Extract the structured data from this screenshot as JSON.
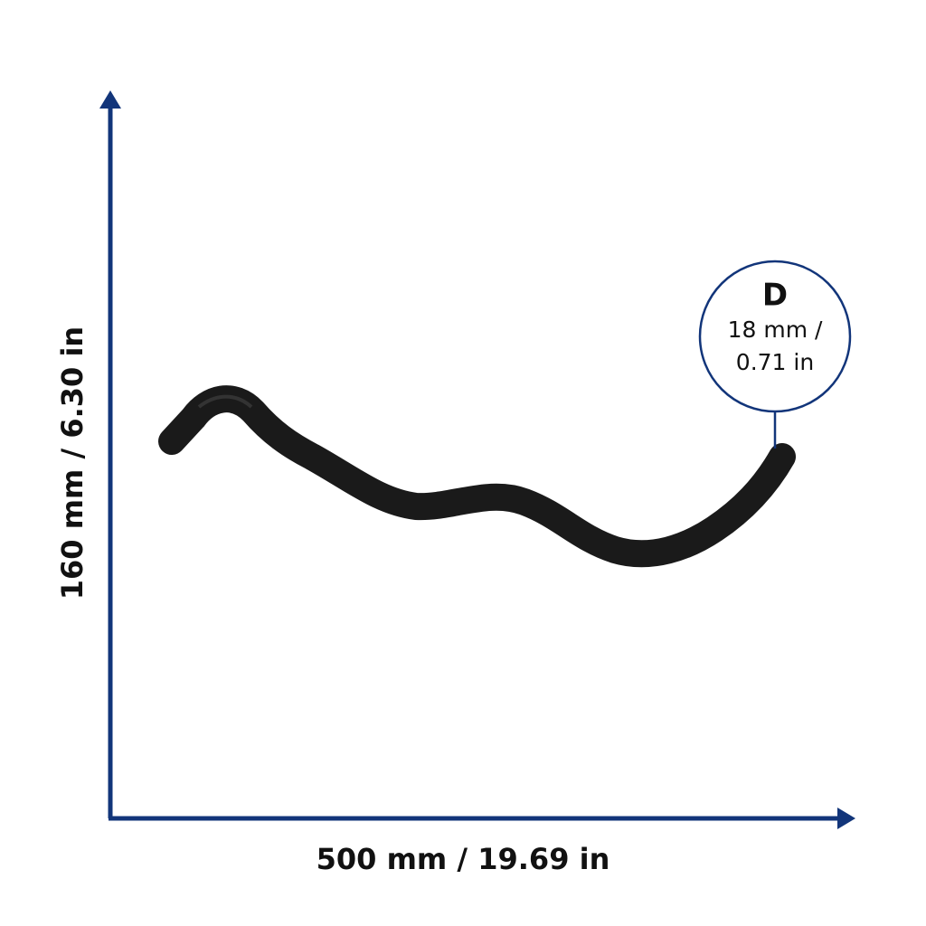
{
  "dimensions": {
    "width_label": "500 mm / 19.69 in",
    "height_label": "160 mm / 6.30 in",
    "diameter": {
      "symbol": "D",
      "line1": "18 mm /",
      "line2": "0.71 in"
    }
  }
}
